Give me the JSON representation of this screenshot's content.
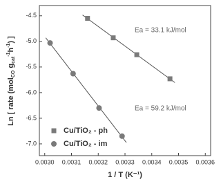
{
  "chart_data": {
    "type": "scatter",
    "x_label": "1 / T (K⁻¹)",
    "y_label": [
      "Ln [ rate (mol",
      "CO",
      " g",
      "cat",
      "-1",
      "h",
      "-1",
      ") ]"
    ],
    "xlim": [
      0.00298,
      0.00362
    ],
    "ylim": [
      -7.23,
      -4.3
    ],
    "xticks": [
      {
        "value": 0.003,
        "label": "0.0030"
      },
      {
        "value": 0.0031,
        "label": "0.0031"
      },
      {
        "value": 0.0032,
        "label": "0.0032"
      },
      {
        "value": 0.0033,
        "label": "0.0033"
      },
      {
        "value": 0.0034,
        "label": "0.0034"
      },
      {
        "value": 0.0035,
        "label": "0.0035"
      },
      {
        "value": 0.0036,
        "label": "0.0036"
      }
    ],
    "yticks": [
      -4.5,
      {
        "value": -5.0,
        "label": "-5.0"
      },
      -5.5,
      {
        "value": -6.0,
        "label": "-6.0"
      },
      -6.5,
      {
        "value": -7.0,
        "label": "-7.0"
      }
    ],
    "series": [
      {
        "name": "Cu/TiO₂ - ph",
        "color": "#7a7a7a",
        "marker": "square",
        "annotation": "Ea = 33.1 kJ/mol",
        "x": [
          0.00316,
          0.003256,
          0.003344,
          0.003468
        ],
        "values": [
          -4.55,
          -4.93,
          -5.26,
          -5.73
        ]
      },
      {
        "name": "Cu/TiO₂ - im",
        "color": "#7a7a7a",
        "marker": "circle",
        "annotation": "Ea = 59.2 kJ/mol",
        "x": [
          0.00302,
          0.003106,
          0.003203,
          0.003289
        ],
        "values": [
          -5.03,
          -5.63,
          -6.3,
          -6.85
        ]
      }
    ]
  }
}
